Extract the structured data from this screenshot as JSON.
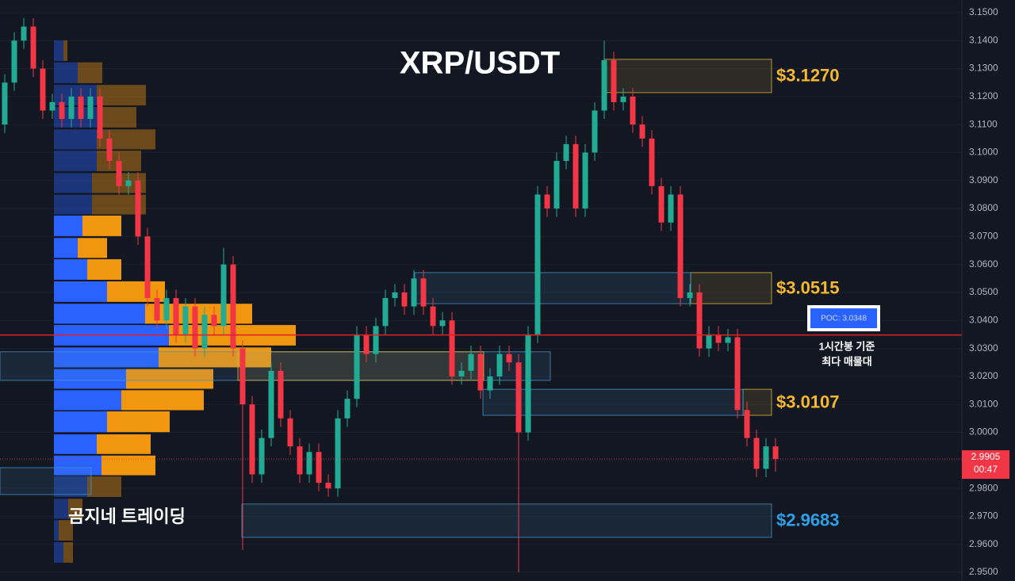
{
  "chart_data": {
    "type": "candlestick",
    "title": "XRP/USDT",
    "watermark": "곰지네 트레이딩",
    "ylim": [
      2.9469,
      3.1545
    ],
    "yticks": [
      {
        "value": 3.15,
        "label": "3.1500"
      },
      {
        "value": 3.14,
        "label": "3.1400"
      },
      {
        "value": 3.13,
        "label": "3.1300"
      },
      {
        "value": 3.12,
        "label": "3.1200"
      },
      {
        "value": 3.11,
        "label": "3.1100"
      },
      {
        "value": 3.1,
        "label": "3.1000"
      },
      {
        "value": 3.09,
        "label": "3.0900"
      },
      {
        "value": 3.08,
        "label": "3.0800"
      },
      {
        "value": 3.07,
        "label": "3.0700"
      },
      {
        "value": 3.06,
        "label": "3.0600"
      },
      {
        "value": 3.05,
        "label": "3.0500"
      },
      {
        "value": 3.04,
        "label": "3.0400"
      },
      {
        "value": 3.03,
        "label": "3.0300"
      },
      {
        "value": 3.02,
        "label": "3.0200"
      },
      {
        "value": 3.01,
        "label": "3.0100"
      },
      {
        "value": 3.0,
        "label": "3.0000"
      },
      {
        "value": 2.99,
        "label": "2.9900"
      },
      {
        "value": 2.98,
        "label": "2.9800"
      },
      {
        "value": 2.97,
        "label": "2.9700"
      },
      {
        "value": 2.96,
        "label": "2.9600"
      },
      {
        "value": 2.95,
        "label": "2.9500"
      }
    ],
    "grid": true,
    "up_color": "#22ab94",
    "down_color": "#f23645",
    "open": [
      3.11,
      3.125,
      3.14,
      3.145,
      3.13,
      3.115,
      3.118,
      3.112,
      3.12,
      3.112,
      3.12,
      3.105,
      3.097,
      3.088,
      3.09,
      3.07,
      3.048,
      3.04,
      3.048,
      3.035,
      3.045,
      3.03,
      3.042,
      3.038,
      3.06,
      3.03,
      3.01,
      2.985,
      2.998,
      3.022,
      3.005,
      2.995,
      2.985,
      2.993,
      2.982,
      2.98,
      3.005,
      3.012,
      3.035,
      3.028,
      3.038,
      3.048,
      3.05,
      3.045,
      3.055,
      3.045,
      3.038,
      3.04,
      3.02,
      3.022,
      3.028,
      3.015,
      3.02,
      3.028,
      3.025,
      3.0,
      3.035,
      3.085,
      3.08,
      3.097,
      3.103,
      3.08,
      3.1,
      3.115,
      3.133,
      3.118,
      3.12,
      3.11,
      3.105,
      3.088,
      3.075,
      3.085,
      3.048,
      3.05,
      3.03,
      3.035,
      3.032,
      3.034,
      3.008,
      2.998,
      2.987,
      2.995
    ],
    "high": [
      3.128,
      3.143,
      3.148,
      3.148,
      3.133,
      3.121,
      3.121,
      3.123,
      3.123,
      3.123,
      3.123,
      3.108,
      3.1,
      3.093,
      3.093,
      3.073,
      3.051,
      3.051,
      3.051,
      3.048,
      3.048,
      3.045,
      3.045,
      3.066,
      3.063,
      3.033,
      3.013,
      3.001,
      3.025,
      3.025,
      3.008,
      2.998,
      2.996,
      2.996,
      2.985,
      3.008,
      3.015,
      3.038,
      3.038,
      3.041,
      3.051,
      3.053,
      3.053,
      3.058,
      3.058,
      3.048,
      3.043,
      3.043,
      3.025,
      3.031,
      3.031,
      3.023,
      3.031,
      3.031,
      3.028,
      3.038,
      3.088,
      3.088,
      3.1,
      3.106,
      3.106,
      3.103,
      3.118,
      3.14,
      3.136,
      3.123,
      3.123,
      3.113,
      3.108,
      3.091,
      3.088,
      3.088,
      3.053,
      3.053,
      3.038,
      3.038,
      3.037,
      3.037,
      3.011,
      3.001,
      2.998,
      2.998
    ],
    "low": [
      3.107,
      3.122,
      3.137,
      3.127,
      3.112,
      3.112,
      3.109,
      3.109,
      3.109,
      3.109,
      3.102,
      3.094,
      3.085,
      3.085,
      3.067,
      3.045,
      3.037,
      3.037,
      3.032,
      3.032,
      3.027,
      3.027,
      3.035,
      3.035,
      3.027,
      2.958,
      2.982,
      2.982,
      2.995,
      3.002,
      2.992,
      2.982,
      2.982,
      2.979,
      2.977,
      2.977,
      3.002,
      3.009,
      3.025,
      3.025,
      3.035,
      3.045,
      3.042,
      3.042,
      3.042,
      3.035,
      3.035,
      3.017,
      3.017,
      3.019,
      3.012,
      3.012,
      3.017,
      3.022,
      2.95,
      2.997,
      3.032,
      3.077,
      3.077,
      3.094,
      3.077,
      3.077,
      3.097,
      3.112,
      3.115,
      3.115,
      3.107,
      3.102,
      3.085,
      3.072,
      3.072,
      3.045,
      3.045,
      3.027,
      3.027,
      3.029,
      3.029,
      3.005,
      2.995,
      2.984,
      2.984,
      2.986
    ],
    "close": [
      3.125,
      3.14,
      3.145,
      3.13,
      3.115,
      3.118,
      3.112,
      3.12,
      3.112,
      3.12,
      3.105,
      3.097,
      3.088,
      3.09,
      3.07,
      3.048,
      3.04,
      3.048,
      3.035,
      3.045,
      3.03,
      3.042,
      3.038,
      3.06,
      3.03,
      3.01,
      2.985,
      2.998,
      3.022,
      3.005,
      2.995,
      2.985,
      2.993,
      2.982,
      2.98,
      3.005,
      3.012,
      3.035,
      3.028,
      3.038,
      3.048,
      3.05,
      3.045,
      3.055,
      3.045,
      3.038,
      3.04,
      3.02,
      3.022,
      3.028,
      3.015,
      3.02,
      3.028,
      3.025,
      3.0,
      3.035,
      3.085,
      3.08,
      3.097,
      3.103,
      3.08,
      3.1,
      3.115,
      3.133,
      3.118,
      3.12,
      3.11,
      3.105,
      3.088,
      3.075,
      3.085,
      3.048,
      3.05,
      3.03,
      3.035,
      3.032,
      3.034,
      3.008,
      2.998,
      2.987,
      2.995,
      2.9905
    ],
    "countdown": "00:47",
    "volume_profile": {
      "prices": [
        3.1364,
        3.1285,
        3.1205,
        3.1126,
        3.1047,
        3.097,
        3.0891,
        3.0814,
        3.0738,
        3.0659,
        3.0582,
        3.0503,
        3.0424,
        3.0347,
        3.0268,
        3.0191,
        3.0115,
        3.0038,
        2.9958,
        2.9882,
        2.9806,
        2.9727,
        2.965,
        2.9571
      ],
      "buy": [
        12,
        30,
        54,
        57,
        54,
        54,
        48,
        48,
        36,
        30,
        42,
        67,
        115,
        145,
        132,
        91,
        85,
        67,
        54,
        60,
        42,
        18,
        6,
        12
      ],
      "sell": [
        5,
        31,
        62,
        47,
        74,
        56,
        68,
        68,
        49,
        37,
        43,
        73,
        135,
        160,
        142,
        110,
        104,
        79,
        68,
        68,
        43,
        18,
        18,
        12
      ],
      "buy_color": "#2962ff",
      "sell_color": "#f0960f",
      "value_area": [
        2.983,
        3.078
      ]
    },
    "poc": {
      "value": 3.0348,
      "label": "POC: 3.0348",
      "color": "#e01f28"
    },
    "poc_note": [
      "1시간봉 기준",
      "최다 매물대"
    ],
    "zones": [
      {
        "top": 3.1333,
        "bottom": 3.1214,
        "color": "#d8b43a",
        "label": "$3.1270"
      },
      {
        "top": 3.0571,
        "bottom": 3.046,
        "color": "#d8b43a",
        "label": "$3.0515"
      },
      {
        "top": 3.0154,
        "bottom": 3.0061,
        "color": "#d8b43a",
        "label": "$3.0107"
      },
      {
        "top": 2.9744,
        "bottom": 2.9625,
        "color": "#4a90c8",
        "label": "$2.9683"
      },
      {
        "top": 3.0571,
        "bottom": 3.046,
        "color": "#4a90c8"
      },
      {
        "top": 3.0288,
        "bottom": 3.0186,
        "color": "#4a90c8"
      },
      {
        "top": 3.0288,
        "bottom": 3.0186,
        "color": "#d8b43a"
      },
      {
        "top": 3.0154,
        "bottom": 3.0061,
        "color": "#4a90c8"
      },
      {
        "top": 2.9874,
        "bottom": 2.9778,
        "color": "#4a90c8"
      }
    ],
    "label_colors": {
      "yellow": "#f5b82e",
      "blue": "#2ea0e6"
    }
  }
}
